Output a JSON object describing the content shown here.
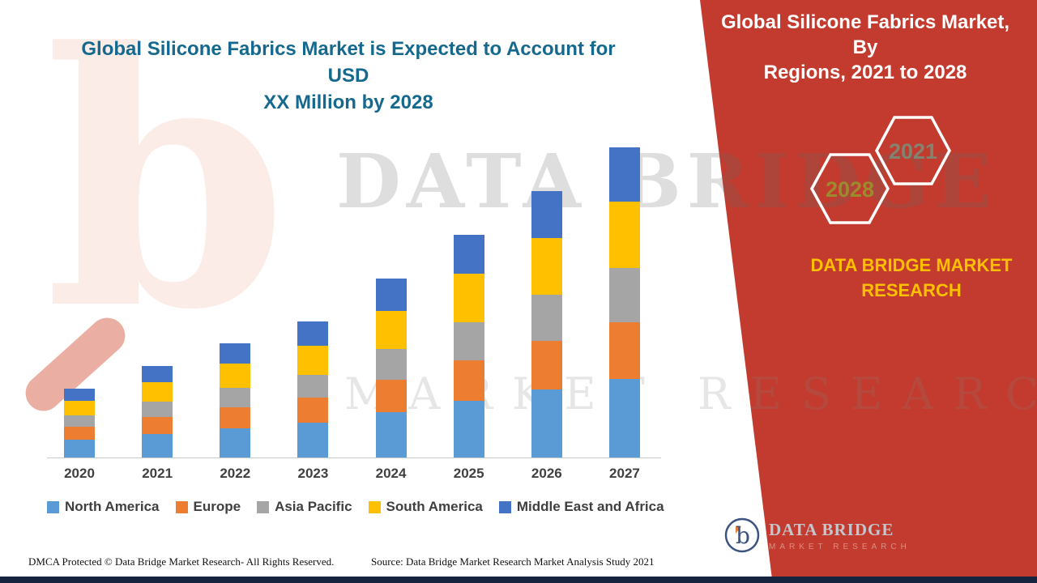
{
  "headline": {
    "line1": "Global Silicone Fabrics Market is Expected to Account for USD",
    "line2": "XX Million by 2028"
  },
  "side_panel": {
    "title_line1": "Global Silicone Fabrics Market, By",
    "title_line2": "Regions, 2021 to 2028",
    "hex_back_label": "2028",
    "hex_front_label": "2021",
    "brand_text": "DATA BRIDGE MARKET RESEARCH",
    "panel_color": "#c23b2e",
    "brand_text_color": "#ffc000"
  },
  "logo": {
    "name": "DATA BRIDGE",
    "tagline": "MARKET RESEARCH"
  },
  "watermark": {
    "line1": "DATA BRIDGE",
    "line2": "MARKET RESEARCH"
  },
  "footer": {
    "dmca": "DMCA Protected © Data Bridge Market Research- All Rights Reserved.",
    "source": "Source: Data Bridge Market Research Market Analysis Study 2021"
  },
  "chart_data": {
    "type": "bar",
    "stacked": true,
    "title": "Global Silicone Fabrics Market is Expected to Account for USD XX Million by 2028",
    "xlabel": "",
    "ylabel": "",
    "grid": false,
    "legend_position": "bottom",
    "value_note": "y-axis unlabeled; values are estimated relative units",
    "categories": [
      "2020",
      "2021",
      "2022",
      "2023",
      "2024",
      "2025",
      "2026",
      "2027"
    ],
    "series": [
      {
        "name": "North America",
        "color": "#5b9bd5",
        "values": [
          22,
          29,
          36,
          43,
          56,
          70,
          84,
          97
        ]
      },
      {
        "name": "Europe",
        "color": "#ed7d31",
        "values": [
          16,
          21,
          26,
          31,
          40,
          50,
          60,
          70
        ]
      },
      {
        "name": "Asia Pacific",
        "color": "#a5a5a5",
        "values": [
          14,
          19,
          24,
          28,
          38,
          47,
          56,
          66
        ]
      },
      {
        "name": "South America",
        "color": "#ffc000",
        "values": [
          18,
          24,
          30,
          36,
          47,
          59,
          70,
          82
        ]
      },
      {
        "name": "Middle East and Africa",
        "color": "#4472c4",
        "values": [
          15,
          20,
          25,
          30,
          39,
          48,
          58,
          67
        ]
      }
    ],
    "totals_estimated": [
      85,
      113,
      141,
      168,
      220,
      274,
      328,
      382
    ]
  }
}
